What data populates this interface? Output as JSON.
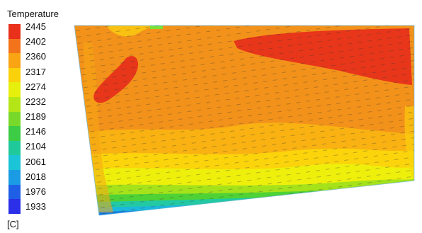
{
  "legend": {
    "title": "Temperature",
    "unit": "[C]",
    "colors": [
      "#e8301a",
      "#f3731a",
      "#f9a412",
      "#fbd10b",
      "#e7ef0c",
      "#b4e617",
      "#79d92a",
      "#3ccc45",
      "#20c99a",
      "#1bc4d6",
      "#1a9be4",
      "#1f5fe6",
      "#2b2fe8"
    ],
    "levels": [
      "2445",
      "2402",
      "2360",
      "2317",
      "2274",
      "2232",
      "2189",
      "2146",
      "2104",
      "2061",
      "2018",
      "1976",
      "1933"
    ]
  }
}
